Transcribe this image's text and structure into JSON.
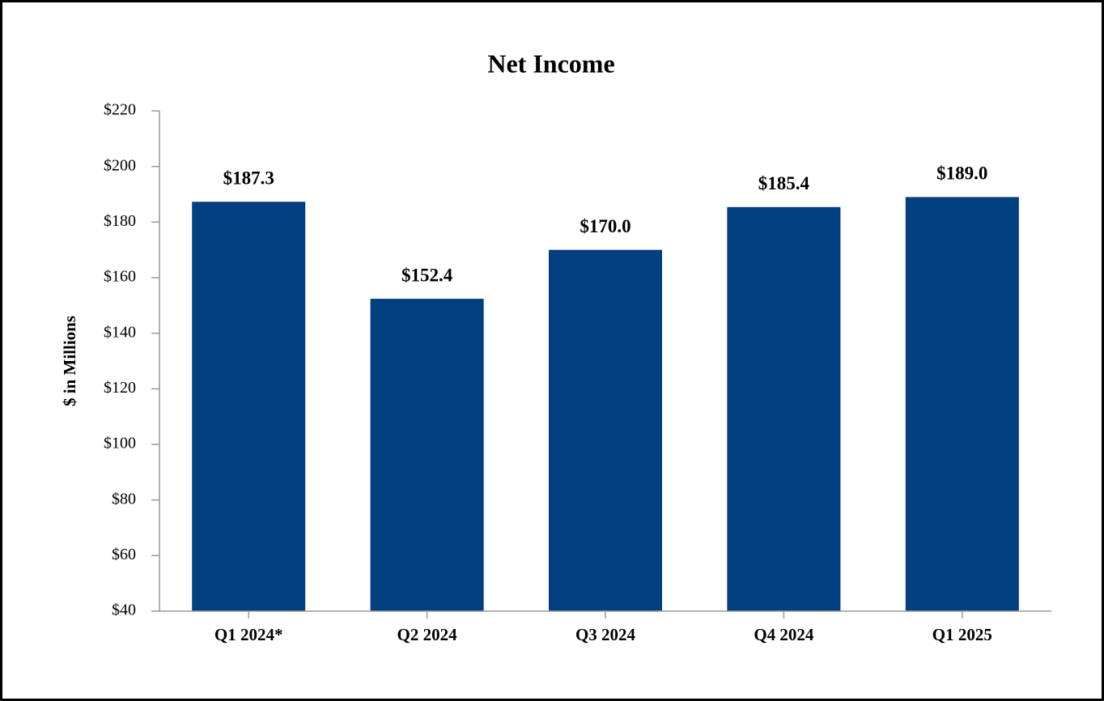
{
  "chart_data": {
    "type": "bar",
    "title": "Net Income",
    "y_label": "$ in Millions",
    "categories": [
      "Q1 2024*",
      "Q2 2024",
      "Q3 2024",
      "Q4 2024",
      "Q1 2025"
    ],
    "values": [
      187.3,
      152.4,
      170.0,
      185.4,
      189.0
    ],
    "value_labels": [
      "$187.3",
      "$152.4",
      "$170.0",
      "$185.4",
      "$189.0"
    ],
    "color": "#023f7e",
    "ylim": [
      40,
      220
    ],
    "yticks": [
      {
        "value": 40,
        "label": "$40"
      },
      {
        "value": 60,
        "label": "$60"
      },
      {
        "value": 80,
        "label": "$80"
      },
      {
        "value": 100,
        "label": "$100"
      },
      {
        "value": 120,
        "label": "$120"
      },
      {
        "value": 140,
        "label": "$140"
      },
      {
        "value": 160,
        "label": "$160"
      },
      {
        "value": 180,
        "label": "$180"
      },
      {
        "value": 200,
        "label": "$200"
      },
      {
        "value": 220,
        "label": "$220"
      }
    ],
    "grid": false
  }
}
